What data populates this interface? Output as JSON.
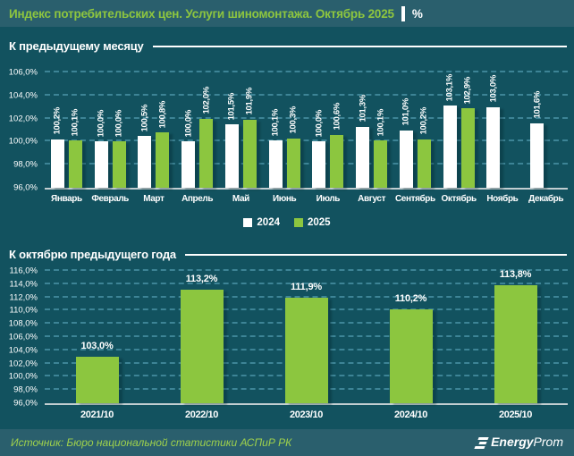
{
  "header": {
    "title": "Индекс потребительских цен. Услуги шиномонтажа. Октябрь 2025",
    "unit": "%"
  },
  "footer": {
    "source": "Источник: Бюро национальной статистики АСПиР РК",
    "logo": {
      "energy": "Energy",
      "prom": "Prom"
    }
  },
  "colors": {
    "background": "#12525f",
    "band": "#2a5f6d",
    "accent_green": "#8cc63f",
    "series_2024": "#ffffff",
    "series_2025": "#8cc63f",
    "gridline": "#3d8496",
    "baseline": "#c2ced1",
    "text": "#ffffff"
  },
  "chart_data": [
    {
      "type": "bar",
      "title": "К предыдущему месяцу",
      "categories": [
        "Январь",
        "Февраль",
        "Март",
        "Апрель",
        "Май",
        "Июнь",
        "Июль",
        "Август",
        "Сентябрь",
        "Октябрь",
        "Ноябрь",
        "Декабрь"
      ],
      "series": [
        {
          "name": "2024",
          "color": "#ffffff",
          "values": [
            100.2,
            100.0,
            100.5,
            100.0,
            101.5,
            100.1,
            100.0,
            101.3,
            101.0,
            103.1,
            103.0,
            101.6
          ]
        },
        {
          "name": "2025",
          "color": "#8cc63f",
          "values": [
            100.1,
            100.0,
            100.8,
            102.0,
            101.9,
            100.3,
            100.6,
            100.1,
            100.2,
            102.9,
            null,
            null
          ]
        }
      ],
      "xlabel": "",
      "ylabel": "",
      "ylim": [
        96,
        106
      ],
      "ytick_step": 2,
      "grid": true,
      "legend_position": "bottom",
      "value_labels": "rotated"
    },
    {
      "type": "bar",
      "title": "К октябрю предыдущего года",
      "categories": [
        "2021/10",
        "2022/10",
        "2023/10",
        "2024/10",
        "2025/10"
      ],
      "values": [
        103.0,
        113.2,
        111.9,
        110.2,
        113.8
      ],
      "bar_color": "#8cc63f",
      "xlabel": "",
      "ylabel": "",
      "ylim": [
        96,
        116
      ],
      "ytick_step": 2,
      "grid": true,
      "legend_position": "none",
      "value_labels": "horizontal"
    }
  ]
}
